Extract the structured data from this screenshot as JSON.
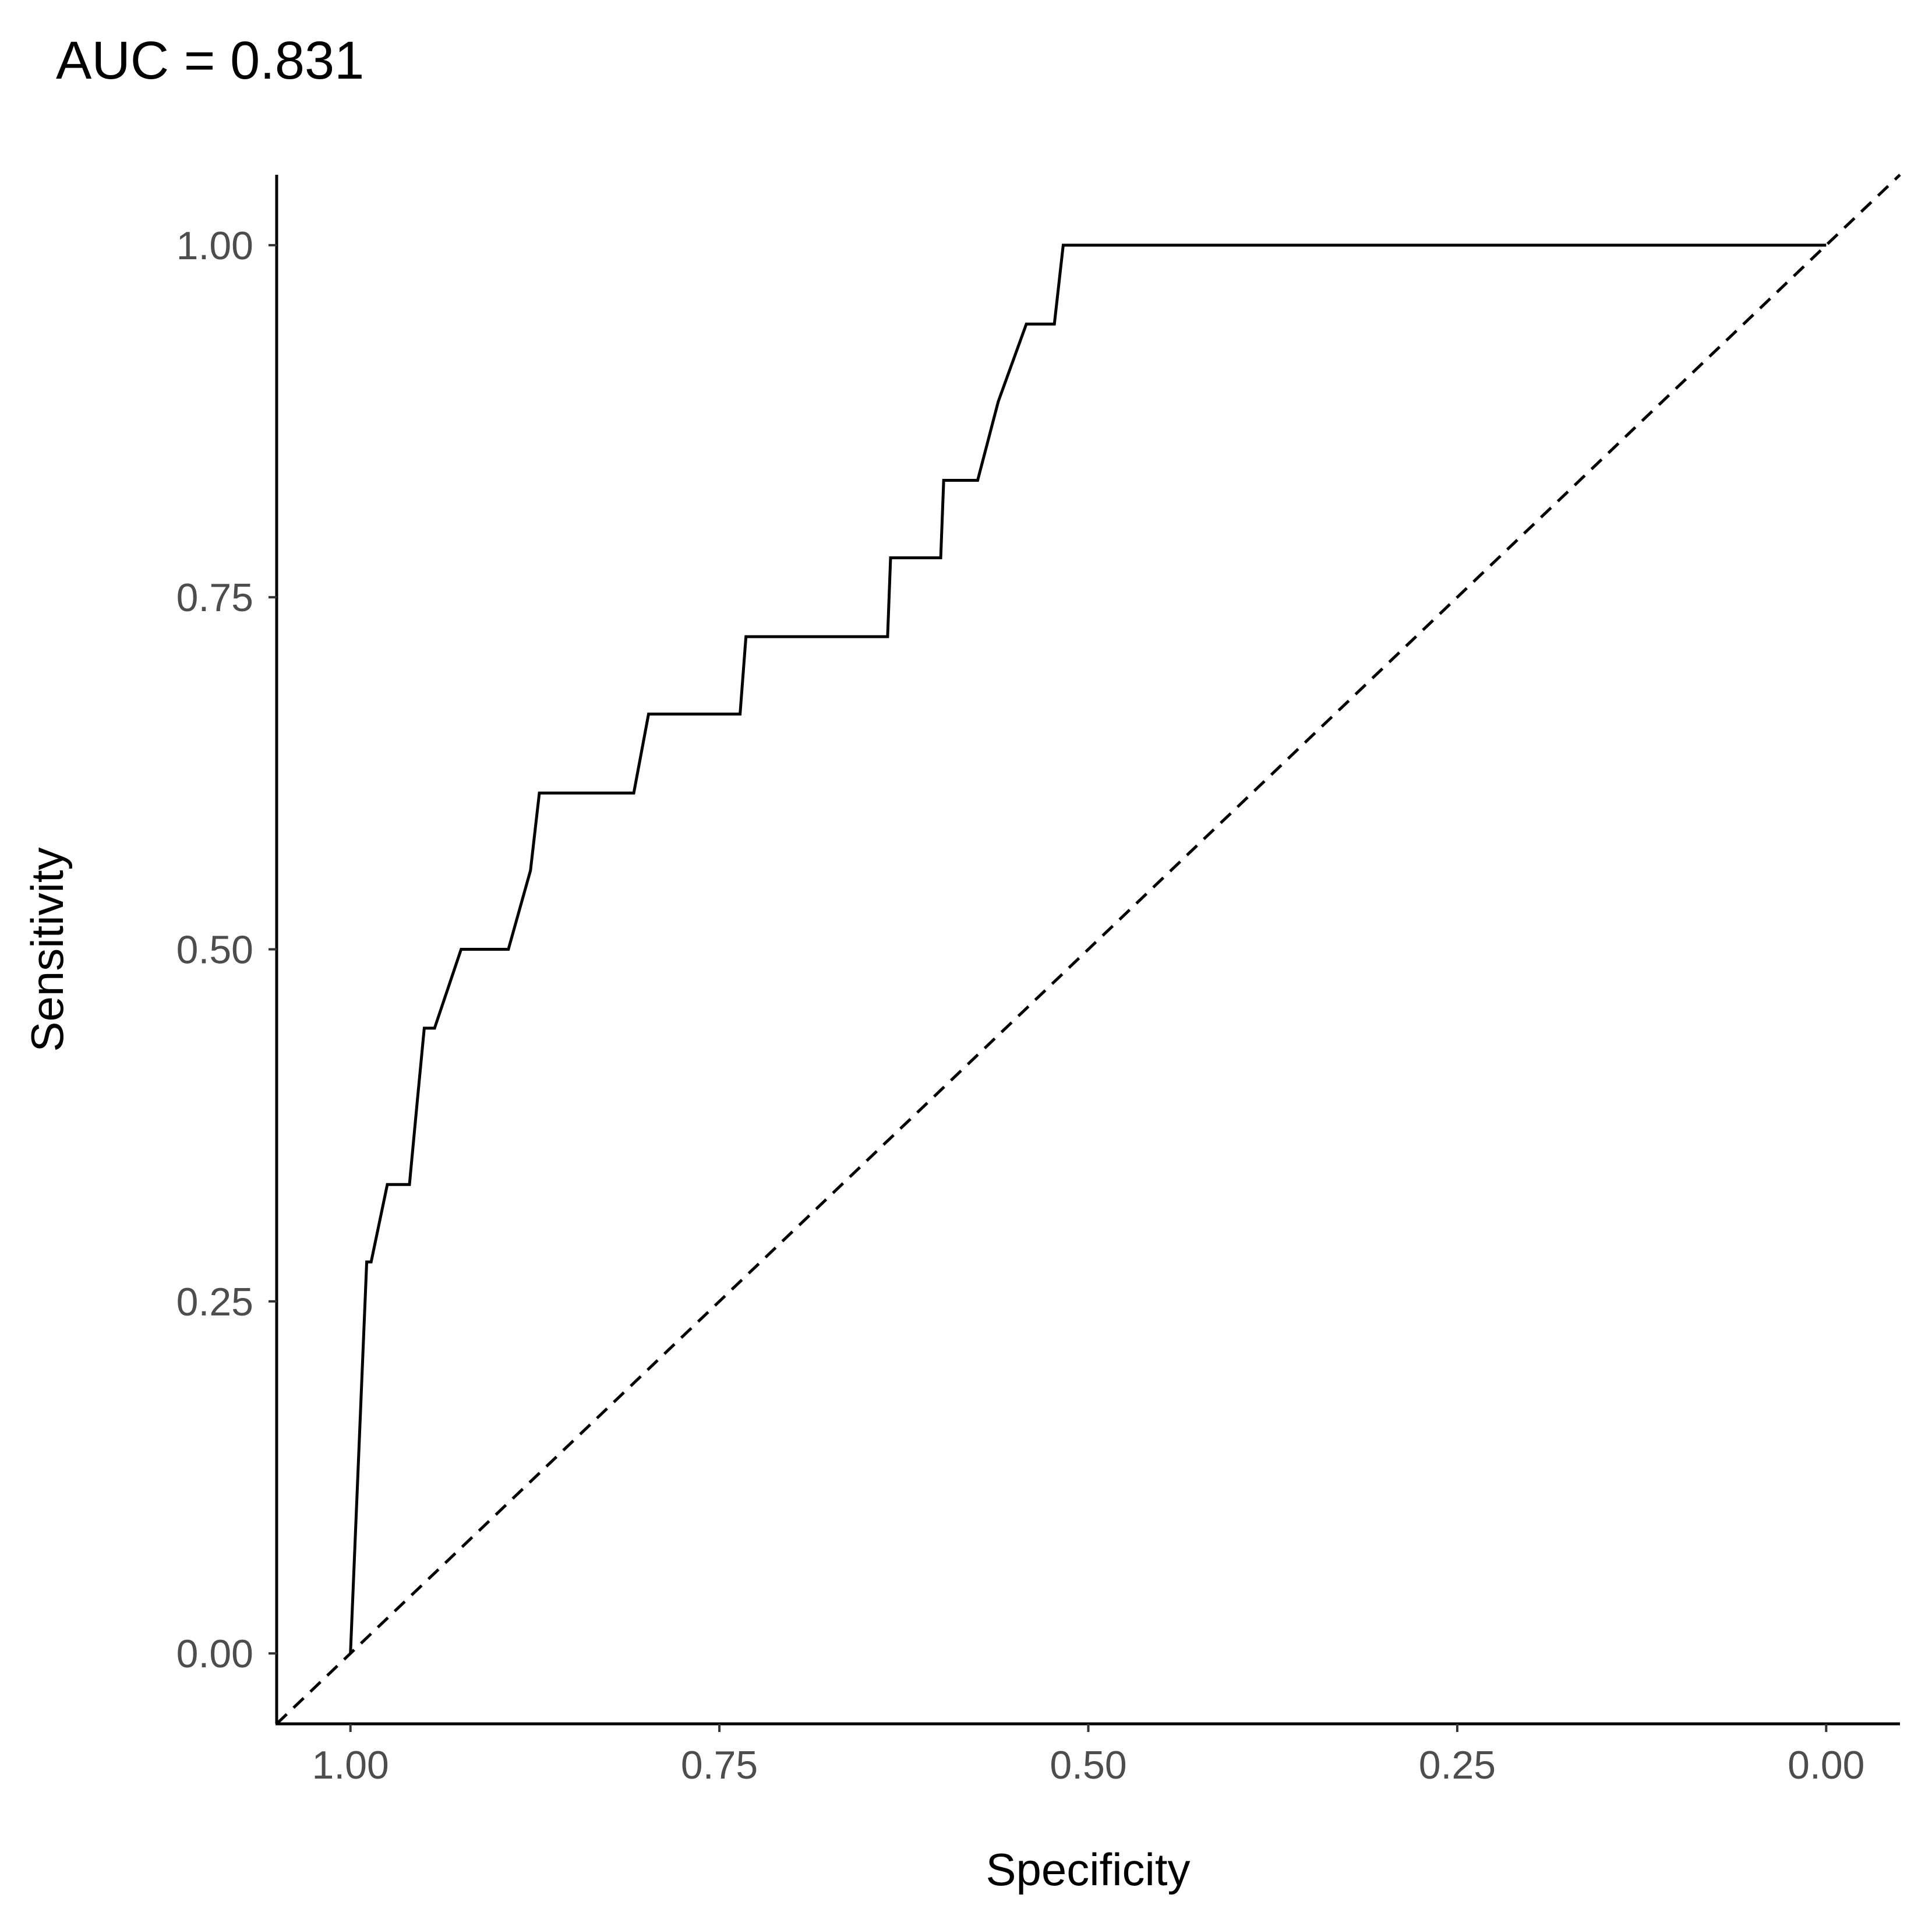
{
  "chart_data": {
    "type": "line",
    "title": "AUC = 0.831",
    "xlabel": "Specificity",
    "ylabel": "Sensitivity",
    "x_reversed": true,
    "xlim": [
      1.05,
      -0.05
    ],
    "ylim": [
      -0.05,
      1.05
    ],
    "x_ticks": [
      1.0,
      0.75,
      0.5,
      0.25,
      0.0
    ],
    "x_tick_labels": [
      "1.00",
      "0.75",
      "0.50",
      "0.25",
      "0.00"
    ],
    "y_ticks": [
      0.0,
      0.25,
      0.5,
      0.75,
      1.0
    ],
    "y_tick_labels": [
      "0.00",
      "0.25",
      "0.50",
      "0.75",
      "1.00"
    ],
    "grid": false,
    "series": [
      {
        "style": "solid",
        "color": "#000000",
        "x": [
          1.0,
          0.989,
          0.986,
          0.975,
          0.96,
          0.955,
          0.95,
          0.943,
          0.925,
          0.893,
          0.878,
          0.872,
          0.808,
          0.798,
          0.736,
          0.732,
          0.636,
          0.634,
          0.6,
          0.598,
          0.575,
          0.561,
          0.542,
          0.523,
          0.517,
          0.0
        ],
        "y": [
          0.0,
          0.278,
          0.278,
          0.333,
          0.333,
          0.389,
          0.444,
          0.444,
          0.5,
          0.5,
          0.556,
          0.611,
          0.611,
          0.667,
          0.667,
          0.722,
          0.722,
          0.778,
          0.778,
          0.833,
          0.833,
          0.889,
          0.944,
          0.944,
          1.0,
          1.0
        ]
      },
      {
        "style": "dashed",
        "color": "#000000",
        "x": [
          1.05,
          -0.05
        ],
        "y": [
          -0.05,
          1.05
        ]
      }
    ]
  }
}
